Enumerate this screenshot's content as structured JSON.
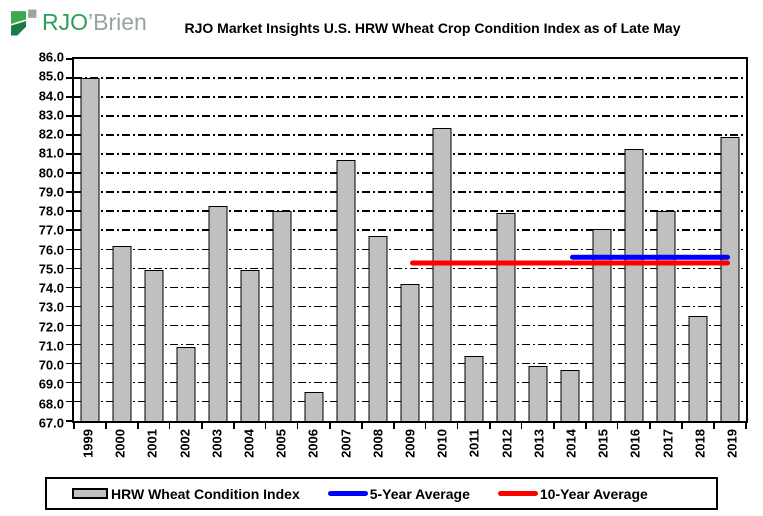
{
  "logo": {
    "text_rjo": "RJO",
    "text_brien": "’Brien",
    "green_bright": "#3aaa4f",
    "green_dark": "#1d7a40",
    "gray": "#9aa5a0"
  },
  "title": "RJO Market Insights U.S. HRW Wheat Crop Condition Index as of Late May",
  "colors": {
    "bar_fill": "#c0c0c0",
    "bar_border": "#000000",
    "five_year_line": "#0000ff",
    "ten_year_line": "#ff0000",
    "grid": "#000000"
  },
  "chart_data": {
    "type": "bar",
    "title": "RJO Market Insights U.S. HRW Wheat Crop Condition Index as of Late May",
    "xlabel": "",
    "ylabel": "",
    "ylim": [
      67.0,
      86.0
    ],
    "ytick_step": 1.0,
    "ytick_labels": [
      "86.0",
      "85.0",
      "84.0",
      "83.0",
      "82.0",
      "81.0",
      "80.0",
      "79.0",
      "78.0",
      "77.0",
      "76.0",
      "75.0",
      "74.0",
      "73.0",
      "72.0",
      "71.0",
      "70.0",
      "69.0",
      "68.0",
      "67.0"
    ],
    "grid": "horizontal-dash-dot",
    "legend_position": "bottom",
    "categories": [
      "1999",
      "2000",
      "2001",
      "2002",
      "2003",
      "2004",
      "2005",
      "2006",
      "2007",
      "2008",
      "2009",
      "2010",
      "2011",
      "2012",
      "2013",
      "2014",
      "2015",
      "2016",
      "2017",
      "2018",
      "2019"
    ],
    "series": [
      {
        "name": "HRW Wheat Condition Index",
        "type": "bar",
        "color": "#c0c0c0",
        "values": [
          85.0,
          76.2,
          74.9,
          70.9,
          78.3,
          74.9,
          78.0,
          68.5,
          80.7,
          76.7,
          74.2,
          82.4,
          70.4,
          77.9,
          69.9,
          69.7,
          77.1,
          81.3,
          78.0,
          72.5,
          81.9
        ]
      },
      {
        "name": "5-Year Average",
        "type": "line",
        "color": "#0000ff",
        "value": 75.6,
        "start_category": "2014",
        "end_category": "2019"
      },
      {
        "name": "10-Year Average",
        "type": "line",
        "color": "#ff0000",
        "value": 75.3,
        "start_category": "2009",
        "end_category": "2019"
      }
    ]
  },
  "legend": {
    "items": [
      {
        "label": "HRW Wheat Condition Index",
        "swatch": "bar",
        "color": "#c0c0c0"
      },
      {
        "label": "5-Year Average",
        "swatch": "line",
        "color": "#0000ff"
      },
      {
        "label": "10-Year Average",
        "swatch": "line",
        "color": "#ff0000"
      }
    ]
  }
}
